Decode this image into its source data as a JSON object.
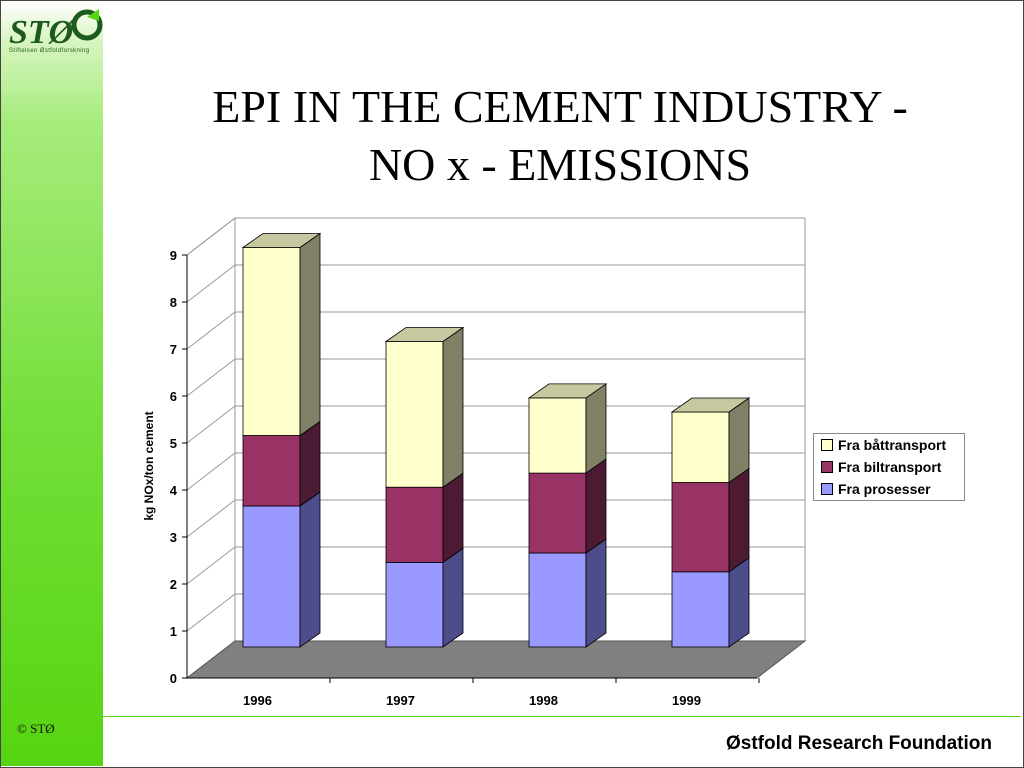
{
  "logo": {
    "mark": "STØ",
    "subtitle": "Stiftelsen Østfoldforskning",
    "icon": "recycle-arrow-icon"
  },
  "title": {
    "line1": "EPI IN THE CEMENT INDUSTRY -",
    "line2": "NO x - EMISSIONS"
  },
  "footer": {
    "copyright": "© STØ",
    "organization": "Østfold Research Foundation"
  },
  "colors": {
    "accent": "#56d410",
    "prosesser": "#9999ff",
    "biltransport": "#993366",
    "battransport": "#ffffcc"
  },
  "chart_data": {
    "type": "bar",
    "stacked": true,
    "three_d": true,
    "categories": [
      "1996",
      "1997",
      "1998",
      "1999"
    ],
    "series": [
      {
        "name": "Fra prosesser",
        "values": [
          3.0,
          1.8,
          2.0,
          1.6
        ]
      },
      {
        "name": "Fra biltransport",
        "values": [
          1.5,
          1.6,
          1.7,
          1.9
        ]
      },
      {
        "name": "Fra båttransport",
        "values": [
          4.0,
          3.1,
          1.6,
          1.5
        ]
      }
    ],
    "ylabel": "kg NOx/ton cement",
    "xlabel": "",
    "ylim": [
      0,
      9
    ],
    "yticks": [
      "0",
      "1",
      "2",
      "3",
      "4",
      "5",
      "6",
      "7",
      "8",
      "9"
    ],
    "grid": true,
    "legend": {
      "position": "right",
      "entries": [
        "Fra båttransport",
        "Fra biltransport",
        "Fra prosesser"
      ]
    }
  }
}
